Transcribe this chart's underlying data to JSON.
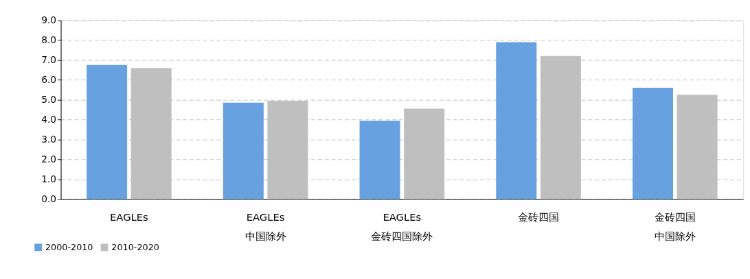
{
  "chart_data": {
    "type": "bar",
    "categories": [
      "EAGLEs",
      "EAGLEs\n中国除外",
      "EAGLEs\n金砖四国除外",
      "金砖四国",
      "金砖四国中国除外"
    ],
    "series": [
      {
        "name": "2000-2010",
        "color": "#67a1e0",
        "values": [
          6.75,
          4.85,
          3.95,
          7.9,
          5.6
        ]
      },
      {
        "name": "2010-2020",
        "color": "#bfbfbf",
        "values": [
          6.6,
          4.95,
          4.55,
          7.2,
          5.25
        ]
      }
    ],
    "ylim": [
      0,
      9
    ],
    "yticks": [
      {
        "value": 0,
        "label": "0.0"
      },
      {
        "value": 1,
        "label": "1.0"
      },
      {
        "value": 2,
        "label": "2.0"
      },
      {
        "value": 3,
        "label": "3.0"
      },
      {
        "value": 4,
        "label": "4.0"
      },
      {
        "value": 5,
        "label": "5.0"
      },
      {
        "value": 6,
        "label": "6.0"
      },
      {
        "value": 7,
        "label": "7.0"
      },
      {
        "value": 8,
        "label": "8.0"
      },
      {
        "value": 9,
        "label": "9.0"
      }
    ],
    "grid": "y",
    "legend": "bottom left"
  }
}
